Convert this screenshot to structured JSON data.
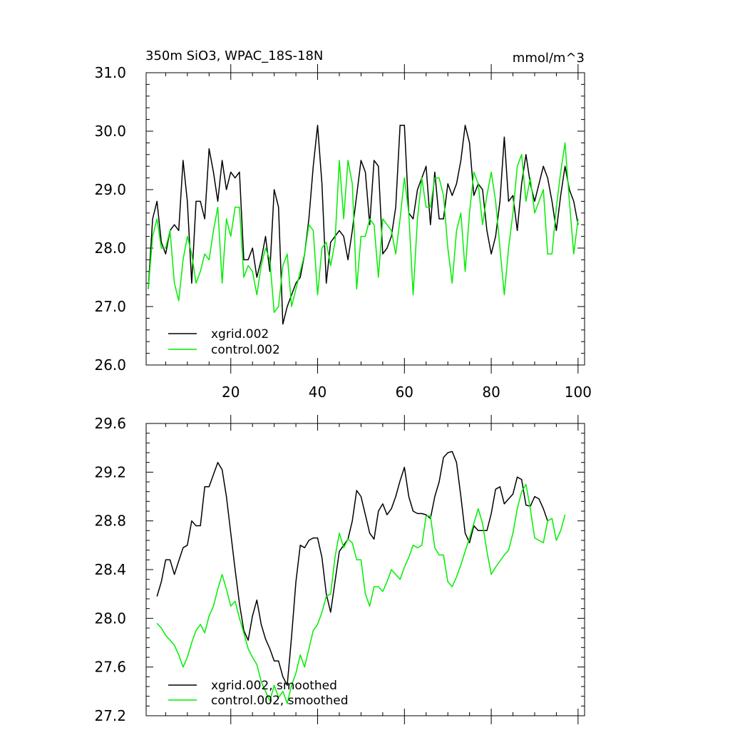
{
  "colors": {
    "xgrid": "#000000",
    "control": "#00ee00",
    "axis": "#000000",
    "background": "#ffffff"
  },
  "chart_data": [
    {
      "type": "line",
      "title": "350m SiO3, WPAC_18S-18N",
      "units": "mmol/m^3",
      "xlabel": "",
      "ylabel": "",
      "xlim": [
        0.5,
        101.5
      ],
      "ylim": [
        26.0,
        31.0
      ],
      "xticks": [
        20,
        40,
        60,
        80,
        100
      ],
      "yticks": [
        "31.0",
        "30.0",
        "29.0",
        "28.0",
        "27.0",
        "26.0"
      ],
      "grid": false,
      "legend_position": "bottom-left",
      "x_start": 1,
      "series": [
        {
          "name": "xgrid.002",
          "color": "#000000",
          "values": [
            27.3,
            28.5,
            28.8,
            28.1,
            27.9,
            28.3,
            28.4,
            28.3,
            29.5,
            28.8,
            27.4,
            28.8,
            28.8,
            28.5,
            29.7,
            29.3,
            28.8,
            29.5,
            29.0,
            29.3,
            29.2,
            29.3,
            27.8,
            27.8,
            28.0,
            27.5,
            27.8,
            28.2,
            27.6,
            29.0,
            28.7,
            26.7,
            27.0,
            27.2,
            27.4,
            27.5,
            27.9,
            28.5,
            29.4,
            30.1,
            29.1,
            27.4,
            28.1,
            28.2,
            28.3,
            28.2,
            27.8,
            28.3,
            28.9,
            29.5,
            29.3,
            28.4,
            29.5,
            29.4,
            27.9,
            28.0,
            28.2,
            28.7,
            30.1,
            30.1,
            28.6,
            28.5,
            29.0,
            29.2,
            29.4,
            28.4,
            29.3,
            28.5,
            28.5,
            29.1,
            28.9,
            29.1,
            29.5,
            30.1,
            29.8,
            28.9,
            29.1,
            29.0,
            28.3,
            27.9,
            28.2,
            28.8,
            29.9,
            28.8,
            28.9,
            28.3,
            29.1,
            29.6,
            29.1,
            28.8,
            29.1,
            29.4,
            29.2,
            28.8,
            28.3,
            28.9,
            29.4,
            29.0,
            28.8,
            28.4
          ]
        },
        {
          "name": "control.002",
          "color": "#00ee00",
          "values": [
            27.3,
            28.2,
            28.5,
            28.0,
            28.0,
            28.3,
            27.4,
            27.1,
            27.8,
            28.2,
            27.9,
            27.4,
            27.6,
            27.9,
            27.8,
            28.3,
            28.7,
            27.4,
            28.5,
            28.2,
            28.7,
            28.7,
            27.5,
            27.7,
            27.6,
            27.2,
            27.7,
            28.0,
            27.8,
            26.9,
            27.0,
            27.7,
            27.9,
            27.0,
            27.3,
            27.6,
            27.9,
            28.4,
            28.3,
            27.2,
            28.0,
            28.1,
            27.7,
            28.1,
            29.5,
            28.5,
            29.5,
            29.1,
            27.3,
            28.2,
            28.2,
            28.5,
            28.4,
            27.5,
            28.5,
            28.4,
            28.3,
            27.9,
            28.5,
            29.2,
            28.6,
            27.2,
            28.5,
            29.2,
            28.7,
            28.7,
            29.2,
            29.2,
            28.9,
            28.0,
            27.4,
            28.3,
            28.6,
            27.6,
            28.6,
            29.3,
            29.1,
            28.4,
            28.9,
            29.3,
            28.8,
            28.0,
            27.2,
            28.0,
            28.6,
            29.4,
            29.6,
            28.8,
            29.2,
            28.6,
            28.8,
            29.0,
            27.9,
            27.9,
            28.7,
            29.3,
            29.8,
            28.8,
            27.9,
            28.5
          ]
        }
      ]
    },
    {
      "type": "line",
      "title": "",
      "xlabel": "",
      "ylabel": "",
      "xlim": [
        0.5,
        101.5
      ],
      "ylim": [
        27.2,
        29.6
      ],
      "xticks": [
        20,
        40,
        60,
        80,
        100
      ],
      "yticks": [
        "29.6",
        "29.2",
        "28.8",
        "28.4",
        "28.0",
        "27.6",
        "27.2"
      ],
      "grid": false,
      "legend_position": "bottom-left",
      "x_start": 3,
      "series": [
        {
          "name": "xgrid.002, smoothed",
          "color": "#000000",
          "values": [
            28.18,
            28.3,
            28.48,
            28.48,
            28.36,
            28.47,
            28.58,
            28.6,
            28.8,
            28.76,
            28.76,
            29.08,
            29.08,
            29.18,
            29.28,
            29.22,
            29.0,
            28.7,
            28.4,
            28.12,
            27.9,
            27.82,
            28.02,
            28.15,
            27.95,
            27.83,
            27.75,
            27.65,
            27.65,
            27.52,
            27.45,
            27.85,
            28.3,
            28.6,
            28.58,
            28.64,
            28.66,
            28.66,
            28.5,
            28.2,
            28.05,
            28.3,
            28.55,
            28.6,
            28.65,
            28.8,
            29.05,
            29.0,
            28.85,
            28.7,
            28.65,
            28.88,
            28.94,
            28.85,
            28.9,
            29.0,
            29.13,
            29.24,
            29.0,
            28.88,
            28.86,
            28.86,
            28.85,
            28.82,
            29.0,
            29.12,
            29.32,
            29.36,
            29.37,
            29.28,
            29.0,
            28.7,
            28.62,
            28.76,
            28.72,
            28.72,
            28.72,
            28.86,
            29.06,
            29.08,
            28.94,
            28.98,
            29.02,
            29.16,
            29.14,
            28.93,
            28.92,
            29.0,
            28.98,
            28.9,
            28.8
          ]
        },
        {
          "name": "control.002, smoothed",
          "color": "#00ee00",
          "values": [
            27.96,
            27.92,
            27.86,
            27.82,
            27.78,
            27.7,
            27.6,
            27.68,
            27.8,
            27.9,
            27.95,
            27.88,
            28.02,
            28.1,
            28.24,
            28.36,
            28.24,
            28.1,
            28.14,
            28.0,
            27.88,
            27.75,
            27.68,
            27.62,
            27.48,
            27.4,
            27.32,
            27.45,
            27.35,
            27.4,
            27.3,
            27.45,
            27.55,
            27.7,
            27.6,
            27.75,
            27.9,
            27.95,
            28.05,
            28.18,
            28.2,
            28.5,
            28.7,
            28.58,
            28.65,
            28.62,
            28.48,
            28.48,
            28.2,
            28.1,
            28.26,
            28.26,
            28.22,
            28.3,
            28.4,
            28.36,
            28.32,
            28.42,
            28.5,
            28.6,
            28.58,
            28.6,
            28.84,
            28.84,
            28.58,
            28.52,
            28.52,
            28.3,
            28.26,
            28.34,
            28.44,
            28.55,
            28.66,
            28.78,
            28.9,
            28.78,
            28.55,
            28.36,
            28.42,
            28.47,
            28.52,
            28.56,
            28.7,
            28.9,
            29.04,
            29.1,
            28.9,
            28.66,
            28.64,
            28.62,
            28.8,
            28.82,
            28.64,
            28.72,
            28.85
          ]
        }
      ]
    }
  ]
}
